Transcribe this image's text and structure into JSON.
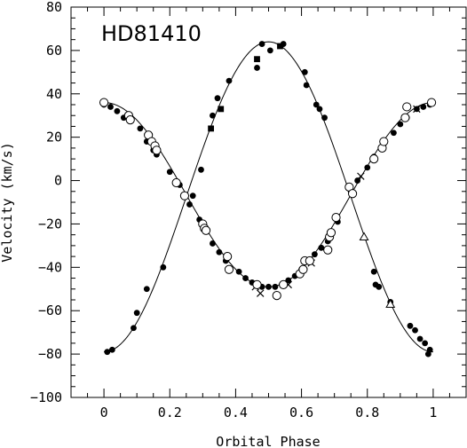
{
  "chart_data": {
    "type": "scatter",
    "title": "HD81410",
    "xlabel": "Orbital Phase",
    "ylabel": "Velocity (km/s)",
    "xlim": [
      -0.1,
      1.1
    ],
    "ylim": [
      -100,
      80
    ],
    "x_ticks": [
      0,
      0.2,
      0.4,
      0.6,
      0.8,
      1
    ],
    "x_tick_labels": [
      "0",
      "0.2",
      "0.4",
      "0.6",
      "0.8",
      "1"
    ],
    "y_ticks": [
      -100,
      -80,
      -60,
      -40,
      -20,
      0,
      20,
      40,
      60,
      80
    ],
    "y_tick_labels": [
      "−100",
      "−80",
      "−60",
      "−40",
      "−20",
      "0",
      "20",
      "40",
      "60",
      "80"
    ],
    "colors": {
      "ink": "#000000",
      "background": "#ffffff"
    },
    "series": [
      {
        "label": "primary_filled_circles",
        "marker": "filled-circle",
        "x": [
          0.01,
          0.025,
          0.09,
          0.1,
          0.13,
          0.18,
          0.27,
          0.295,
          0.33,
          0.345,
          0.38,
          0.465,
          0.48,
          0.505,
          0.545,
          0.61,
          0.615,
          0.645,
          0.655,
          0.67,
          0.82,
          0.825,
          0.835,
          0.87,
          0.93,
          0.945,
          0.96,
          0.975,
          0.99,
          0.985
        ],
        "y": [
          -79,
          -78,
          -68,
          -61,
          -50,
          -40,
          -7,
          5,
          30,
          38,
          46,
          52,
          63,
          60,
          63,
          50,
          44,
          35,
          33,
          29,
          -42,
          -48,
          -49,
          -56,
          -67,
          -69,
          -73,
          -75,
          -78,
          -80
        ]
      },
      {
        "label": "primary_filled_squares",
        "marker": "filled-square",
        "x": [
          0.325,
          0.355,
          0.465,
          0.535
        ],
        "y": [
          24,
          33,
          56,
          62
        ]
      },
      {
        "label": "secondary_filled_circles",
        "marker": "filled-circle",
        "x": [
          0.0,
          0.02,
          0.04,
          0.06,
          0.08,
          0.11,
          0.13,
          0.15,
          0.16,
          0.2,
          0.23,
          0.26,
          0.29,
          0.31,
          0.33,
          0.35,
          0.37,
          0.41,
          0.43,
          0.45,
          0.48,
          0.5,
          0.52,
          0.54,
          0.56,
          0.58,
          0.6,
          0.62,
          0.64,
          0.66,
          0.68,
          0.71,
          0.75,
          0.77,
          0.8,
          0.82,
          0.85,
          0.88,
          0.9,
          0.92,
          0.95,
          0.97,
          0.99
        ],
        "y": [
          35,
          34,
          32,
          29,
          28,
          24,
          18,
          14,
          12,
          4,
          -2,
          -11,
          -18,
          -23,
          -29,
          -33,
          -37,
          -42,
          -45,
          -47,
          -49,
          -49,
          -49,
          -48,
          -46,
          -44,
          -41,
          -37,
          -34,
          -31,
          -28,
          -19,
          -5,
          0,
          6,
          11,
          17,
          22,
          26,
          29,
          33,
          34,
          35
        ]
      },
      {
        "label": "secondary_open_circles",
        "marker": "open-circle",
        "x": [
          0.0,
          0.075,
          0.08,
          0.135,
          0.145,
          0.155,
          0.16,
          0.22,
          0.245,
          0.3,
          0.305,
          0.31,
          0.375,
          0.38,
          0.465,
          0.525,
          0.545,
          0.595,
          0.605,
          0.61,
          0.625,
          0.68,
          0.685,
          0.69,
          0.705,
          0.745,
          0.755,
          0.82,
          0.845,
          0.85,
          0.915,
          0.92,
          0.995
        ],
        "y": [
          36,
          30,
          28,
          21,
          18,
          16,
          14,
          -1,
          -7,
          -20,
          -22,
          -23,
          -35,
          -41,
          -48,
          -53,
          -48,
          -43,
          -41,
          -37,
          -37,
          -32,
          -26,
          -24,
          -17,
          -3,
          -6,
          10,
          15,
          18,
          29,
          34,
          36
        ]
      },
      {
        "label": "secondary_crosses",
        "marker": "cross",
        "x": [
          0.46,
          0.475,
          0.56,
          0.63,
          0.78,
          0.95
        ],
        "y": [
          -49,
          -52,
          -48,
          -38,
          2,
          33
        ]
      },
      {
        "label": "triangles",
        "marker": "open-triangle",
        "x": [
          0.79,
          0.87
        ],
        "y": [
          -26,
          -57
        ]
      }
    ],
    "curves": [
      {
        "label": "primary_orbit_fit",
        "model": "sinusoid",
        "gamma": -7.5,
        "semi_amplitude": 71.5,
        "phase_of_max": 0.5
      },
      {
        "label": "secondary_orbit_fit",
        "model": "sinusoid",
        "gamma": -6.5,
        "semi_amplitude": 42.5,
        "phase_of_max": 0.0
      }
    ]
  }
}
